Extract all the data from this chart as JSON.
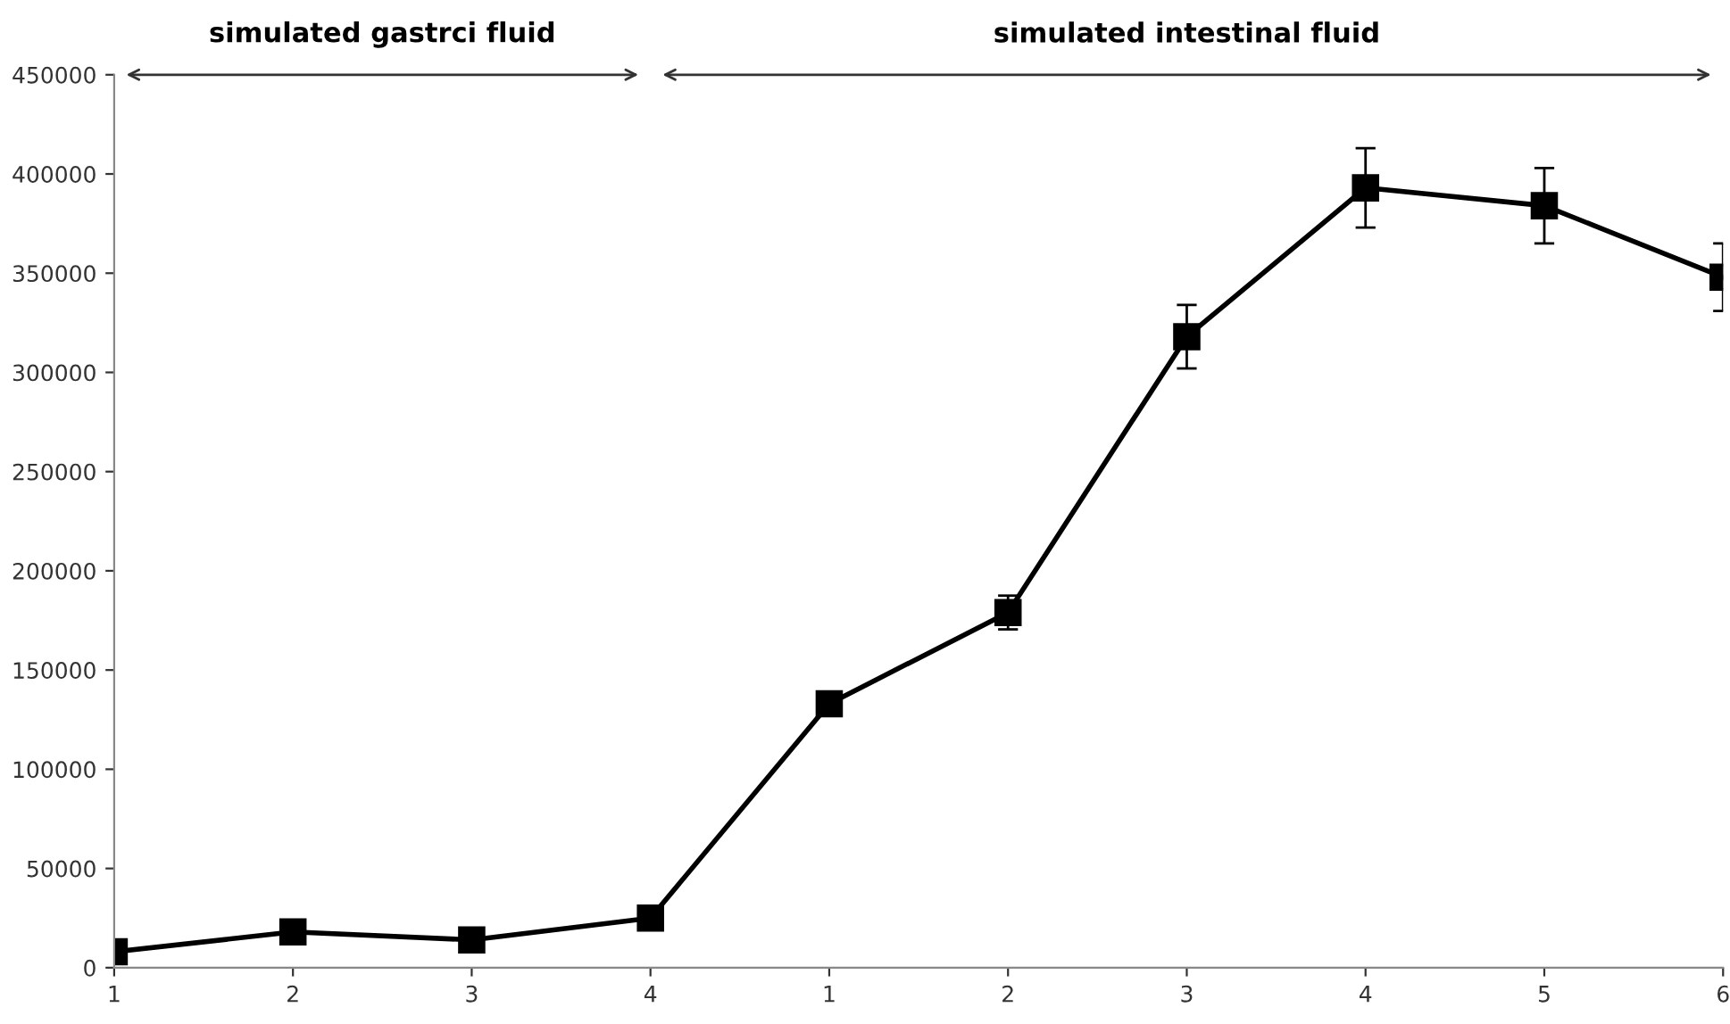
{
  "chart_data": {
    "type": "line",
    "categories": [
      "1",
      "2",
      "3",
      "4",
      "1",
      "2",
      "3",
      "4",
      "5",
      "6"
    ],
    "series": [
      {
        "color": "#000000",
        "values": [
          8000,
          18000,
          14000,
          25000,
          133000,
          179000,
          318000,
          393000,
          384000,
          348000
        ],
        "errors": [
          null,
          null,
          null,
          null,
          4000,
          8500,
          16000,
          20000,
          19000,
          17000
        ]
      }
    ],
    "annotations": [
      "simulated gastrci fluid",
      "simulated intestinal fluid"
    ],
    "ylim": [
      0,
      450000
    ],
    "yticks": [
      0,
      50000,
      100000,
      150000,
      200000,
      250000,
      300000,
      350000,
      400000,
      450000
    ],
    "marker": "square",
    "line_style": "solid",
    "grid": false,
    "legend": false
  }
}
